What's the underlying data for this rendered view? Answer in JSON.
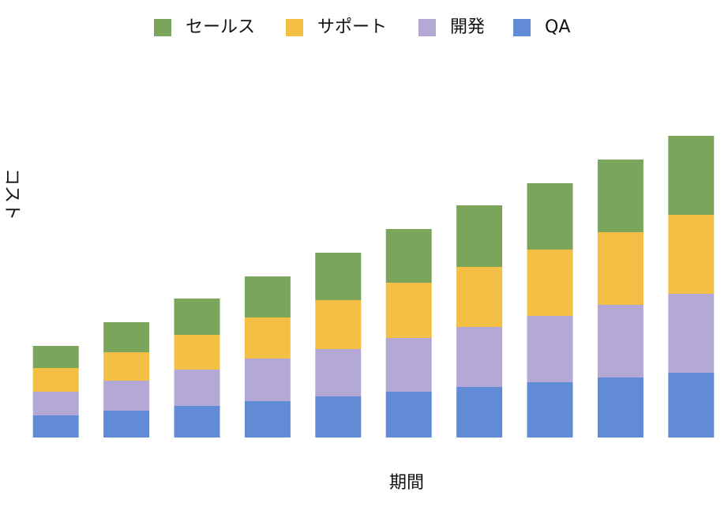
{
  "chart_data": {
    "type": "stacked_bar",
    "xlabel": "期間",
    "ylabel": "コスト",
    "categories": [
      null,
      null,
      null,
      null,
      null,
      null,
      null,
      null,
      null,
      null
    ],
    "series": [
      {
        "name": "セールス",
        "color": "#7aa55a",
        "values": [
          28,
          38,
          46,
          52,
          60,
          68,
          78,
          84,
          92,
          100
        ]
      },
      {
        "name": "サポート",
        "color": "#f3bf44",
        "values": [
          30,
          36,
          44,
          52,
          62,
          70,
          76,
          84,
          92,
          100
        ]
      },
      {
        "name": "開発",
        "color": "#b3a8d6",
        "values": [
          30,
          38,
          46,
          54,
          60,
          68,
          76,
          84,
          92,
          100
        ]
      },
      {
        "name": "QA",
        "color": "#628bd6",
        "values": [
          28,
          34,
          40,
          46,
          52,
          58,
          64,
          70,
          76,
          82
        ]
      }
    ],
    "ylim": [
      0,
      400
    ],
    "legend": "top"
  }
}
